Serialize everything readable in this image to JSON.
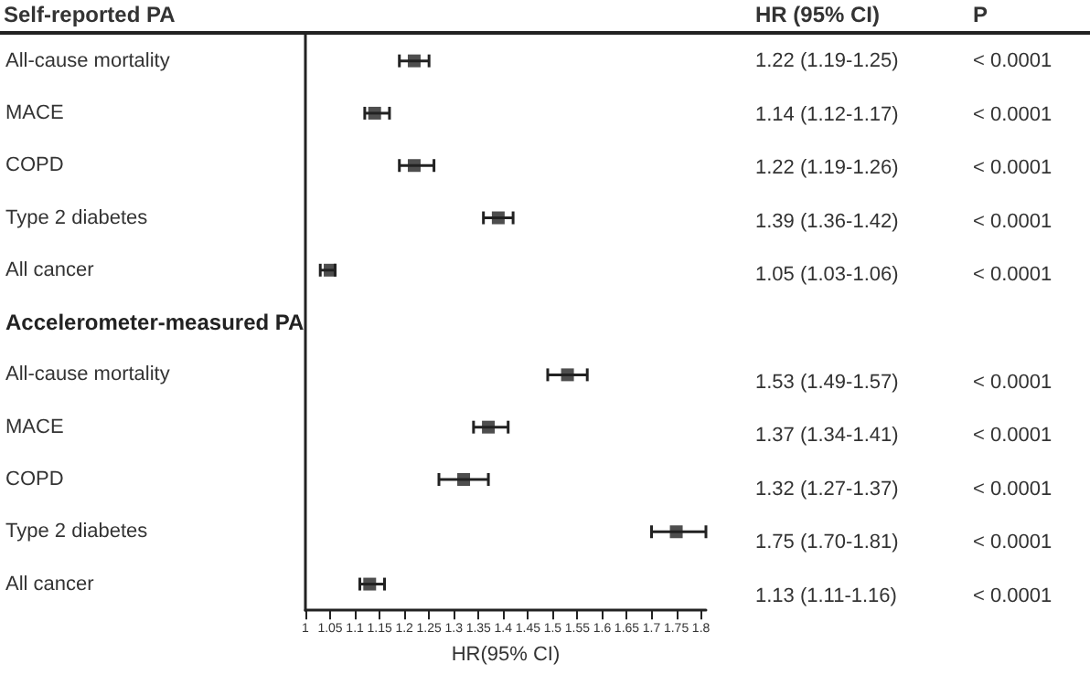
{
  "chart_data": {
    "type": "scatter",
    "orientation": "horizontal",
    "xlabel": "HR(95% CI)",
    "title": "Self-reported PA",
    "categories": [
      "All-cause mortality",
      "MACE",
      "COPD",
      "Type 2 diabetes",
      "All cancer",
      "Accelerometer-measured PA",
      "All-cause mortality",
      "MACE",
      "COPD",
      "Type 2 diabetes",
      "All cancer"
    ],
    "values": [
      1.22,
      1.14,
      1.22,
      1.39,
      1.05,
      null,
      1.53,
      1.37,
      1.32,
      1.75,
      1.13
    ],
    "errors": [
      [
        1.19,
        1.25
      ],
      [
        1.12,
        1.17
      ],
      [
        1.19,
        1.26
      ],
      [
        1.36,
        1.42
      ],
      [
        1.03,
        1.06
      ],
      null,
      [
        1.49,
        1.57
      ],
      [
        1.34,
        1.41
      ],
      [
        1.27,
        1.37
      ],
      [
        1.7,
        1.81
      ],
      [
        1.11,
        1.16
      ]
    ],
    "value_labels": [
      "1.22 (1.19-1.25)",
      "1.14 (1.12-1.17)",
      "1.22 (1.19-1.26)",
      "1.39 (1.36-1.42)",
      "1.05 (1.03-1.06)",
      null,
      "1.53 (1.49-1.57)",
      "1.37 (1.34-1.41)",
      "1.32 (1.27-1.37)",
      "1.75 (1.70-1.81)",
      "1.13 (1.11-1.16)"
    ],
    "annotations": [
      "HR (95% CI)",
      "P",
      "< 0.0001",
      "< 0.0001",
      "< 0.0001",
      "< 0.0001",
      "< 0.0001",
      "< 0.0001",
      "< 0.0001",
      "< 0.0001",
      "< 0.0001",
      "< 0.0001"
    ],
    "color": "#222222",
    "marker": "square",
    "grid": false,
    "xlim": [
      1,
      1.81
    ],
    "xticks": [
      1,
      1.05,
      1.1,
      1.15,
      1.2,
      1.25,
      1.3,
      1.35,
      1.4,
      1.45,
      1.5,
      1.55,
      1.6,
      1.65,
      1.7,
      1.75,
      1.8
    ]
  }
}
